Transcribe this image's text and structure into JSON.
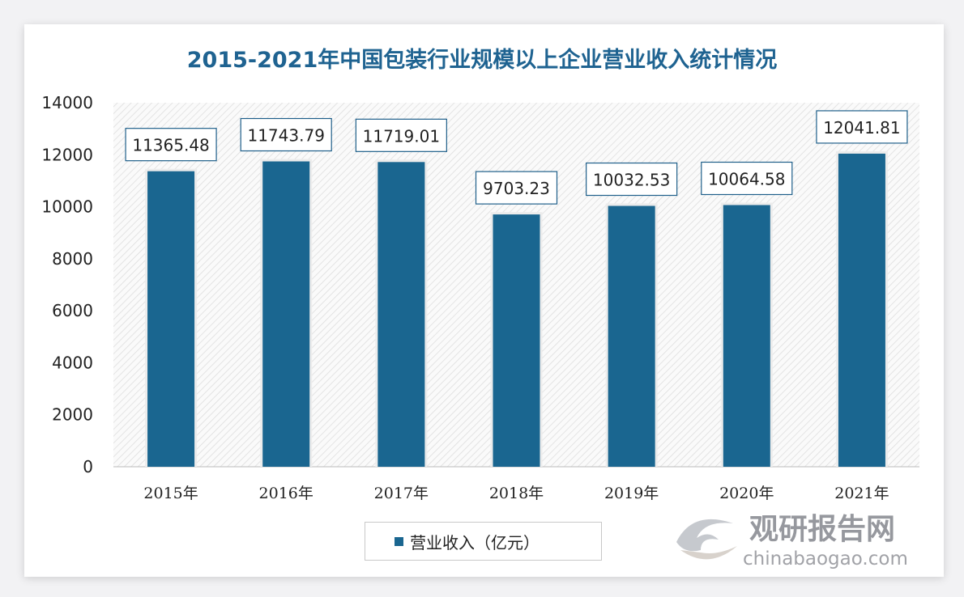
{
  "chart_data": {
    "type": "bar",
    "title": "2015-2021年中国包装行业规模以上企业营业收入统计情况",
    "categories": [
      "2015年",
      "2016年",
      "2017年",
      "2018年",
      "2019年",
      "2020年",
      "2021年"
    ],
    "series": [
      {
        "name": "营业收入（亿元）",
        "values": [
          11365.48,
          11743.79,
          11719.01,
          9703.23,
          10032.53,
          10064.58,
          12041.81
        ]
      }
    ],
    "data_labels": [
      "11365.48",
      "11743.79",
      "11719.01",
      "9703.23",
      "10032.53",
      "10064.58",
      "12041.81"
    ],
    "ylim": [
      0,
      14000
    ],
    "yticks": [
      0,
      2000,
      4000,
      6000,
      8000,
      10000,
      12000,
      14000
    ],
    "grid": false,
    "legend": "bottom",
    "colors": {
      "bar": "#1a6690",
      "title": "#1f6391"
    }
  },
  "watermark": {
    "cn": "观研报告网",
    "en": "chinabaogao.com"
  }
}
